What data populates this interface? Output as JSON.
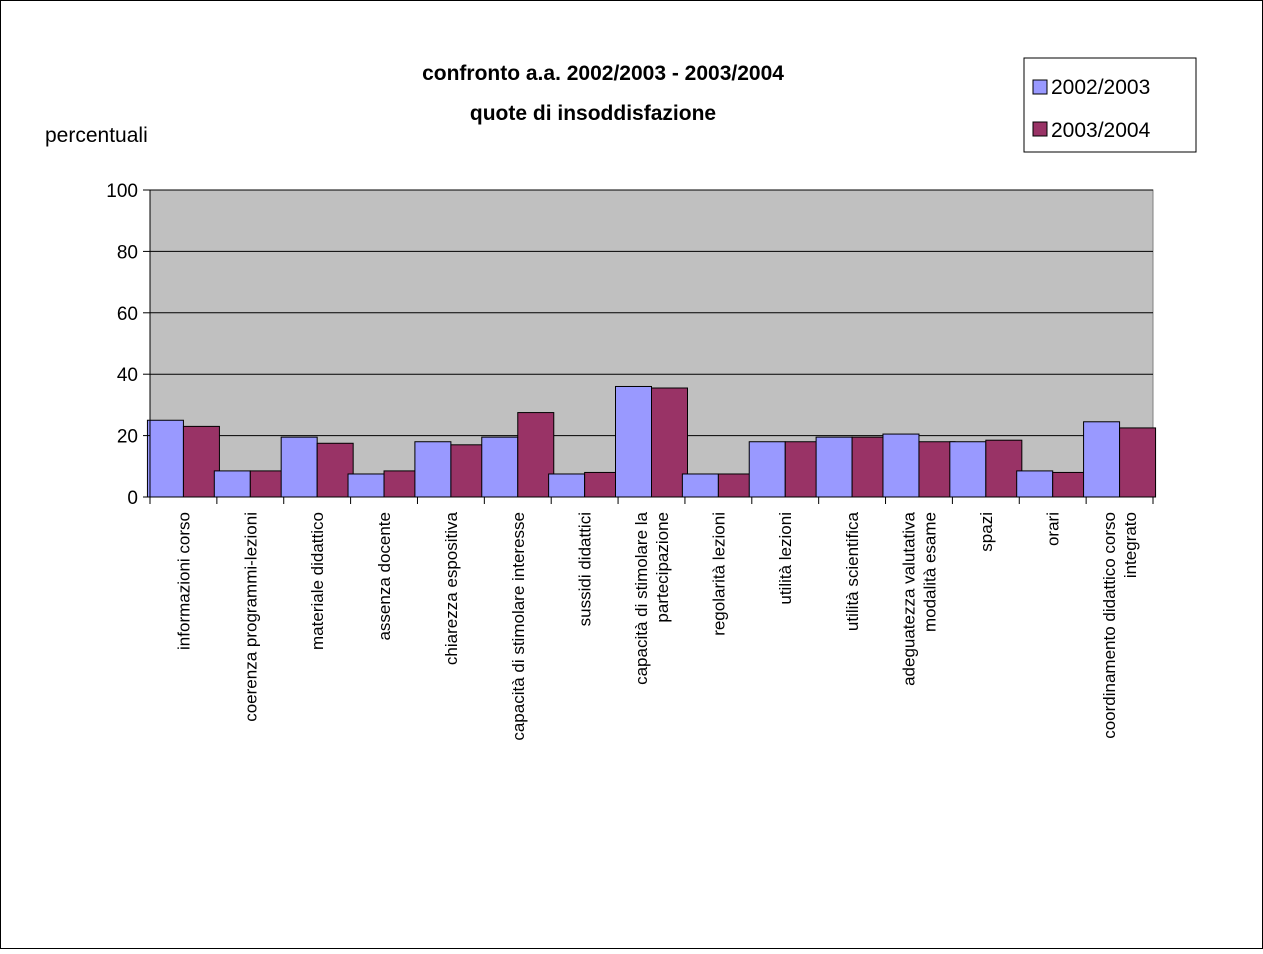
{
  "chart_data": {
    "type": "bar",
    "title": [
      "confronto a.a. 2002/2003 - 2003/2004",
      "quote di insoddisfazione"
    ],
    "ylabel": "percentuali",
    "xlabel": "",
    "ylim": [
      0,
      100
    ],
    "yticks": [
      "0",
      "20",
      "40",
      "60",
      "80",
      "100"
    ],
    "grid": true,
    "legend_position": "top-right",
    "categories": [
      [
        "informazioni corso"
      ],
      [
        "coerenza programmi-lezioni"
      ],
      [
        "materiale didattico"
      ],
      [
        "assenza docente"
      ],
      [
        "chiarezza espositiva"
      ],
      [
        "capacità di stimolare interesse"
      ],
      [
        "sussidi didattici"
      ],
      [
        "capacità di stimolare la",
        "partecipazione"
      ],
      [
        "regolarità lezioni"
      ],
      [
        "utilità lezioni"
      ],
      [
        "utilità scientifica"
      ],
      [
        "adeguatezza valutativa",
        "modalità esame"
      ],
      [
        "spazi"
      ],
      [
        "orari"
      ],
      [
        "coordinamento didattico corso",
        "integrato"
      ]
    ],
    "series": [
      {
        "name": "2002/2003",
        "color": "#9999ff",
        "values": [
          25,
          8.5,
          19.5,
          7.5,
          18,
          19.5,
          7.5,
          36,
          7.5,
          18,
          19.5,
          20.5,
          18,
          8.5,
          24.5
        ]
      },
      {
        "name": "2003/2004",
        "color": "#993366",
        "values": [
          23,
          8.5,
          17.5,
          8.5,
          17,
          27.5,
          8,
          35.5,
          7.5,
          18,
          19.5,
          18,
          18.5,
          8,
          22.5
        ]
      }
    ],
    "colors": {
      "plot_background": "#c0c0c0",
      "gridline": "#000000"
    }
  }
}
